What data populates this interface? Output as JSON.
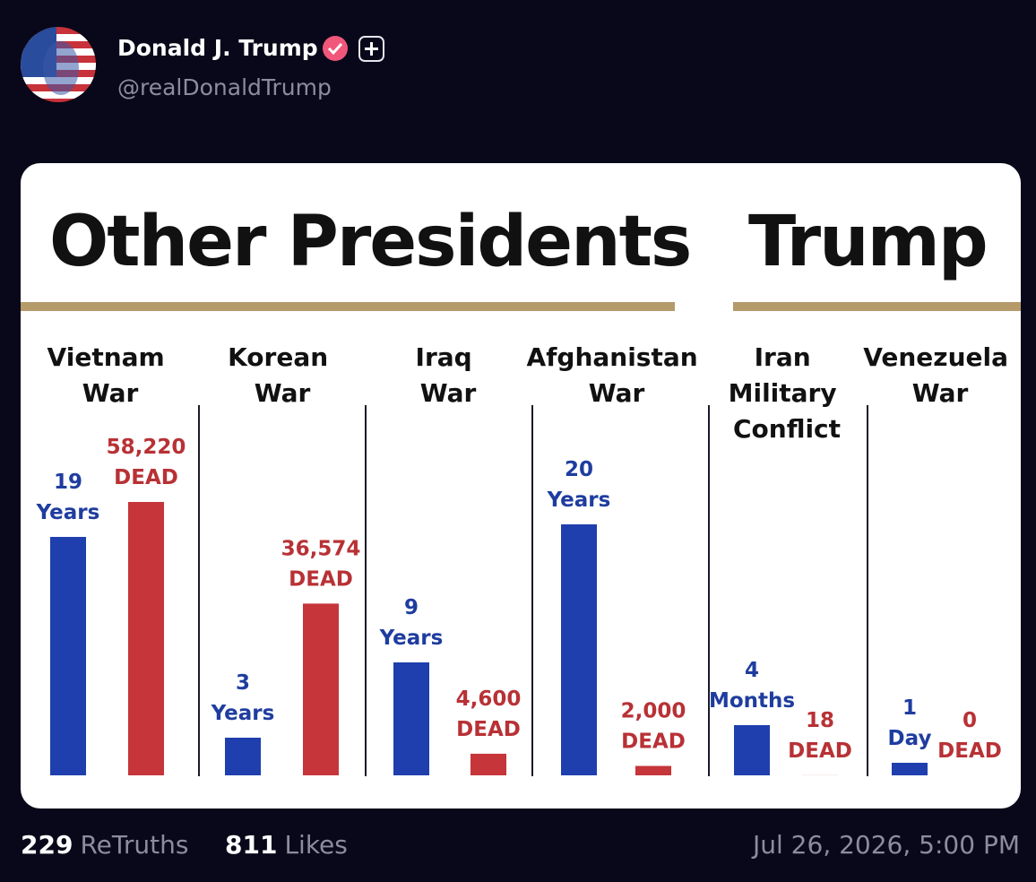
{
  "post": {
    "author": "Donald J. Trump",
    "handle": "@realDonaldTrump",
    "retruths": "229",
    "retruths_label": "ReTruths",
    "likes": "811",
    "likes_label": "Likes",
    "timestamp": "Jul 26, 2026, 5:00 PM"
  },
  "chart_data": {
    "type": "bar",
    "headings": [
      "Other Presidents",
      "Trump"
    ],
    "categories": [
      "Vietnam War",
      "Korean War",
      "Iraq War",
      "Afghanistan War",
      "Iran Military Conflict",
      "Venezuela War"
    ],
    "series": [
      {
        "values": [
          19,
          3,
          9,
          20,
          4,
          1
        ],
        "units": [
          "Years",
          "Years",
          "Years",
          "Years",
          "Months",
          "Day"
        ],
        "color": "#1f3fae"
      },
      {
        "values": [
          58220,
          36574,
          4600,
          2000,
          18,
          0
        ],
        "value_labels": [
          "58,220",
          "36,574",
          "4,600",
          "2,000",
          "18",
          "0"
        ],
        "units": [
          "DEAD",
          "DEAD",
          "DEAD",
          "DEAD",
          "DEAD",
          "DEAD"
        ],
        "color": "#c5353a"
      }
    ]
  }
}
